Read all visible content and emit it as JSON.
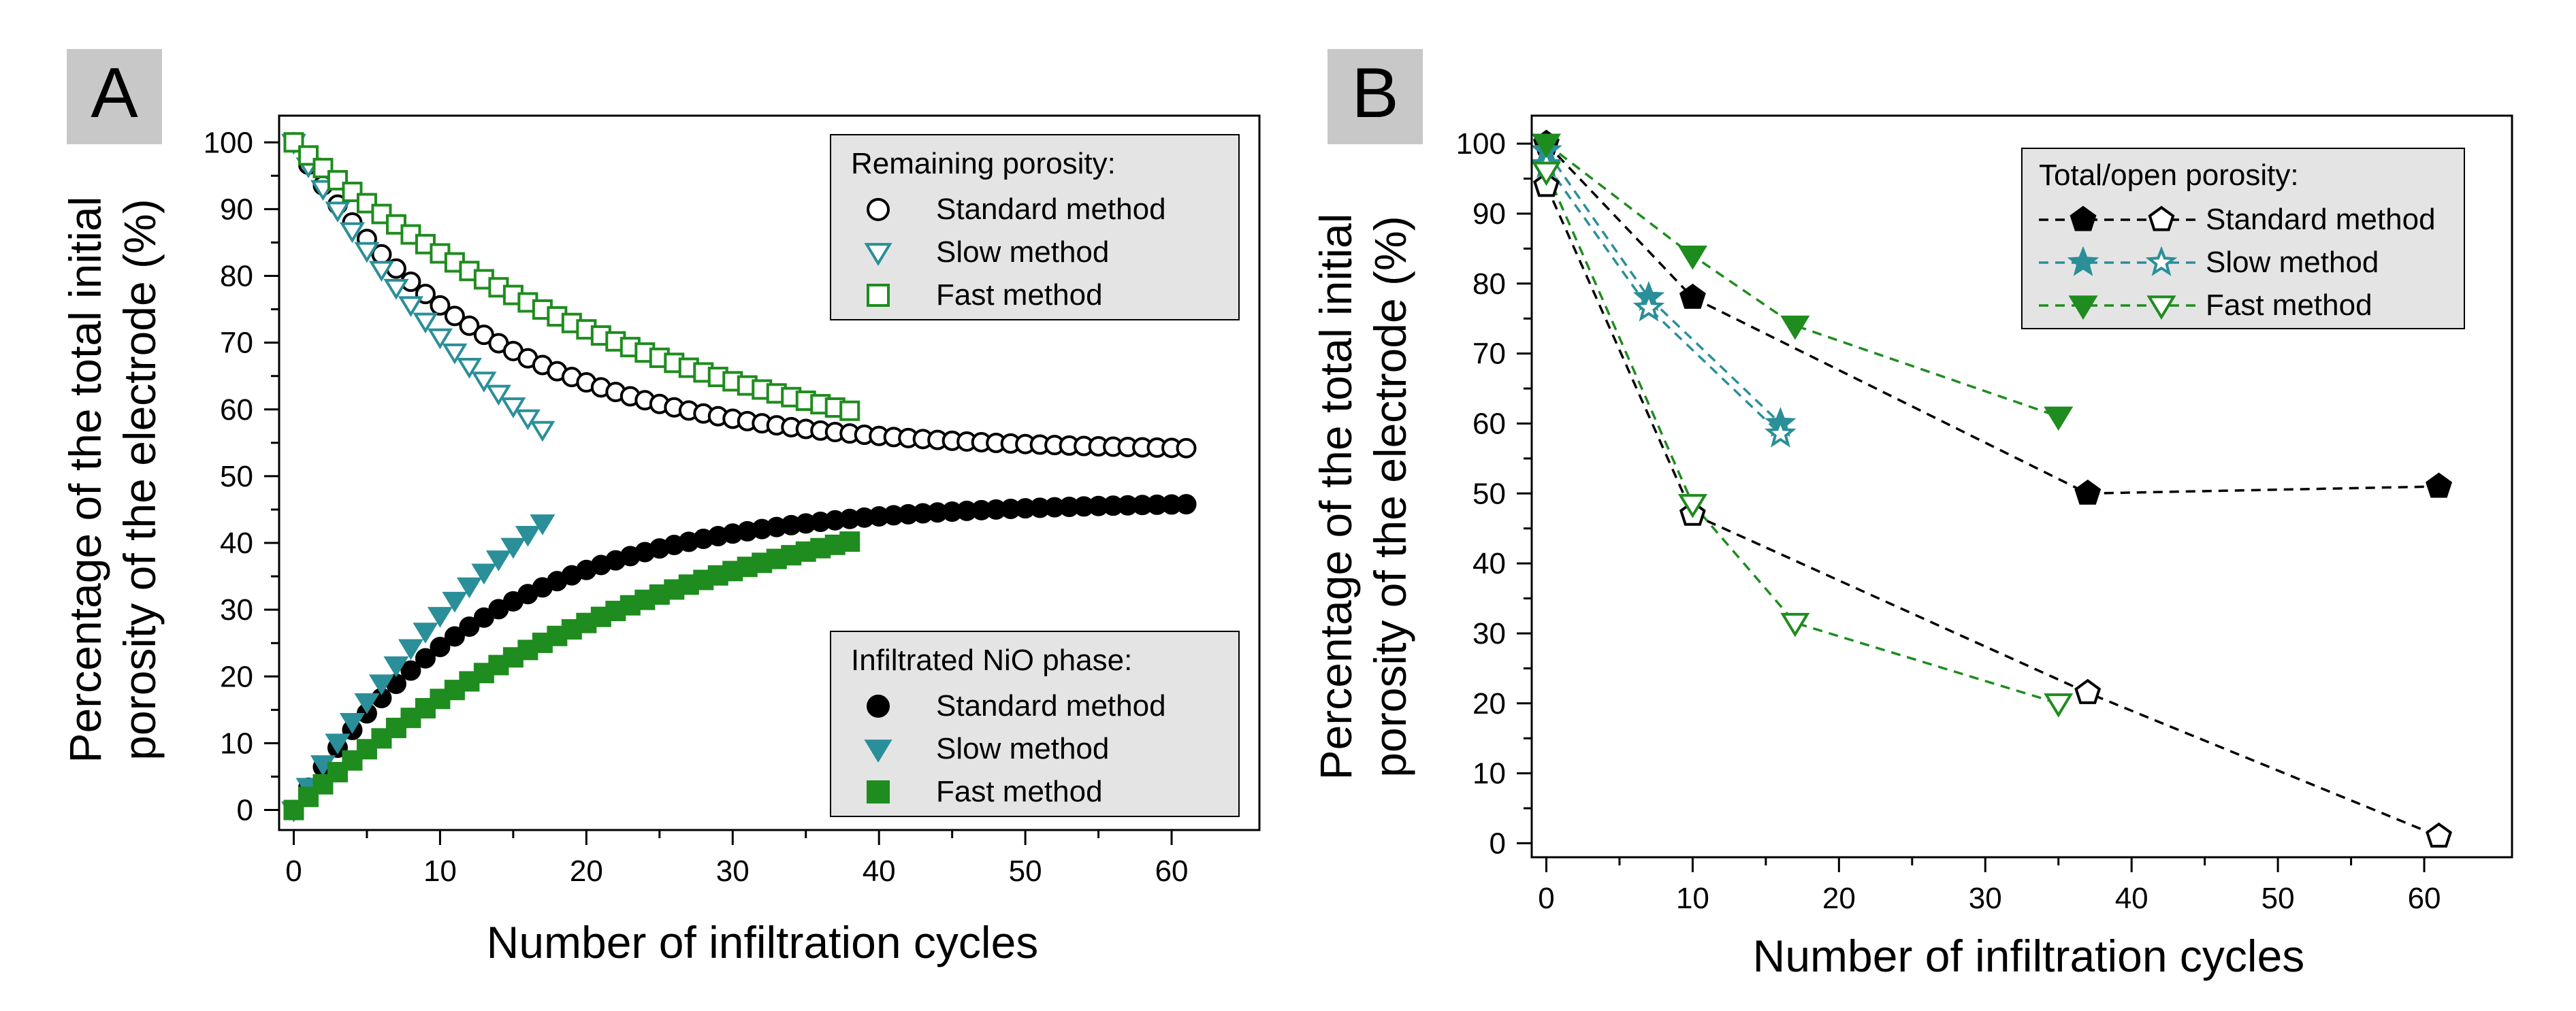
{
  "colors": {
    "black": "#000000",
    "teal": "#2a8f98",
    "green": "#1e8c1e",
    "panel_label_bg": "#c8c8c8",
    "legend_bg": "#e4e4e4"
  },
  "chart_data": [
    {
      "type": "scatter",
      "panel_label": "A",
      "xlabel": "Number of infiltration cycles",
      "ylabel": "Percentage of the total initial porosity of the electrode (%)",
      "ylabel_lines": [
        "Percentage of the total initial",
        "porosity of the electrode (%)"
      ],
      "xlim": [
        -1,
        66
      ],
      "ylim": [
        -3,
        104
      ],
      "xticks": [
        "0",
        "10",
        "20",
        "30",
        "40",
        "50",
        "60"
      ],
      "yticks": [
        "0",
        "10",
        "20",
        "30",
        "40",
        "50",
        "60",
        "70",
        "80",
        "90",
        "100"
      ],
      "legends": [
        {
          "title": "Remaining porosity:",
          "position": "top-right",
          "entries": [
            "Standard method",
            "Slow method",
            "Fast method"
          ]
        },
        {
          "title": "Infiltrated NiO phase:",
          "position": "bottom-right",
          "entries": [
            "Standard method",
            "Slow method",
            "Fast method"
          ]
        }
      ],
      "series": [
        {
          "name": "Remaining porosity - Standard method",
          "marker": "circle-open",
          "color": "#000000",
          "x_start": 0,
          "x_end": 61,
          "y_start": 100,
          "y_end": 54.2,
          "k": 0.075
        },
        {
          "name": "Remaining porosity - Slow method",
          "marker": "triangle-down-open",
          "color": "#2a8f98",
          "x_start": 0,
          "x_end": 17,
          "y_start": 100,
          "y_end": 57,
          "k": 0.045
        },
        {
          "name": "Remaining porosity - Fast method",
          "marker": "square-open",
          "color": "#1e8c1e",
          "x_start": 0,
          "x_end": 38,
          "y_start": 100,
          "y_end": 59.8,
          "k": 0.038
        },
        {
          "name": "Infiltrated NiO phase - Standard method",
          "marker": "circle-filled",
          "color": "#000000",
          "x_start": 0,
          "x_end": 61,
          "y_start": 0,
          "y_end": 45.8,
          "k": 0.075
        },
        {
          "name": "Infiltrated NiO phase - Slow method",
          "marker": "triangle-down-filled",
          "color": "#2a8f98",
          "x_start": 0,
          "x_end": 17,
          "y_start": 0,
          "y_end": 43,
          "k": 0.045
        },
        {
          "name": "Infiltrated NiO phase - Fast method",
          "marker": "square-filled",
          "color": "#1e8c1e",
          "x_start": 0,
          "x_end": 38,
          "y_start": 0,
          "y_end": 40.2,
          "k": 0.038
        }
      ]
    },
    {
      "type": "line",
      "panel_label": "B",
      "xlabel": "Number of infiltration cycles",
      "ylabel": "Percentage of the total initial porosity of the electrode (%)",
      "ylabel_lines": [
        "Percentage of the total initial",
        "porosity of the electrode (%)"
      ],
      "xlim": [
        -1,
        66
      ],
      "ylim": [
        -2,
        104
      ],
      "xticks": [
        "0",
        "10",
        "20",
        "30",
        "40",
        "50",
        "60"
      ],
      "yticks": [
        "0",
        "10",
        "20",
        "30",
        "40",
        "50",
        "60",
        "70",
        "80",
        "90",
        "100"
      ],
      "legend": {
        "title": "Total/open porosity:",
        "position": "top-right",
        "entries": [
          "Standard method",
          "Slow method",
          "Fast method"
        ]
      },
      "series": [
        {
          "name": "Standard method (total)",
          "marker": "pentagon-filled",
          "color": "#000000",
          "x": [
            0,
            10,
            37,
            61
          ],
          "y": [
            100,
            78,
            50,
            51
          ]
        },
        {
          "name": "Standard method (open)",
          "marker": "pentagon-open",
          "color": "#000000",
          "x": [
            0,
            10,
            37,
            61
          ],
          "y": [
            94,
            47,
            21.5,
            1
          ]
        },
        {
          "name": "Slow method (total)",
          "marker": "star-filled",
          "color": "#2a8f98",
          "x": [
            0,
            7,
            16
          ],
          "y": [
            99,
            78,
            60
          ]
        },
        {
          "name": "Slow method (open)",
          "marker": "star-open",
          "color": "#2a8f98",
          "x": [
            0,
            7,
            16
          ],
          "y": [
            97,
            76.5,
            58.5
          ]
        },
        {
          "name": "Fast method (total)",
          "marker": "triangle-down-filled",
          "color": "#1e8c1e",
          "x": [
            0,
            10,
            17,
            35
          ],
          "y": [
            100,
            84,
            74,
            61
          ]
        },
        {
          "name": "Fast method (open)",
          "marker": "triangle-down-open",
          "color": "#1e8c1e",
          "x": [
            0,
            10,
            17,
            35
          ],
          "y": [
            96,
            48.5,
            31.5,
            20
          ]
        }
      ]
    }
  ]
}
